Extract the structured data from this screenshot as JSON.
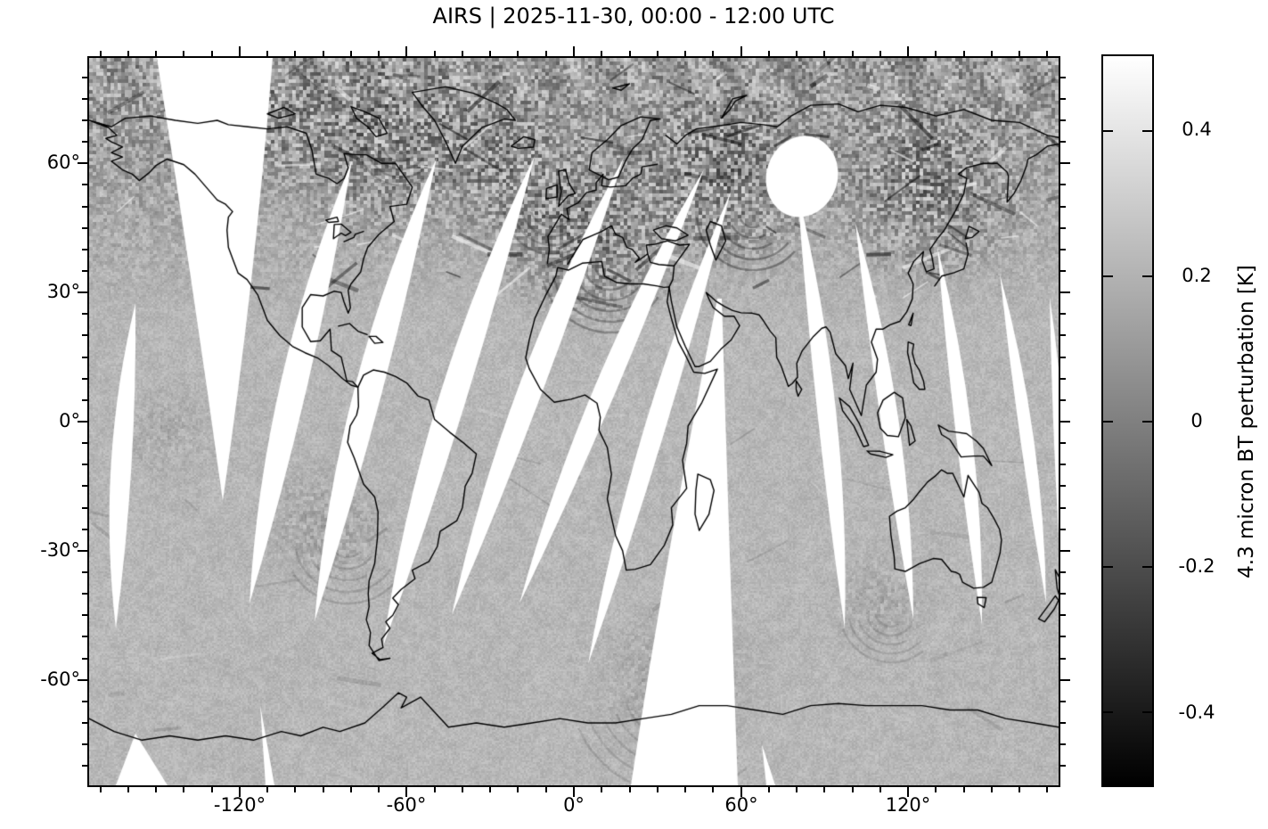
{
  "chart_data": {
    "type": "heatmap",
    "title": "AIRS | 2025-11-30, 00:00 - 12:00 UTC",
    "projection": "equirectangular world map",
    "x_axis": {
      "tick_labels": [
        "-120°",
        "-60°",
        "0°",
        "60°",
        "120°"
      ],
      "tick_values": [
        -120,
        -60,
        0,
        60,
        120
      ],
      "minor_tick_interval": 10,
      "range": [
        -174,
        174
      ]
    },
    "y_axis": {
      "tick_labels": [
        "60°",
        "30°",
        "0°",
        "-30°",
        "-60°"
      ],
      "tick_values": [
        60,
        30,
        0,
        -30,
        -60
      ],
      "minor_tick_interval": 5,
      "range": [
        -84.5,
        84.5
      ]
    },
    "colorbar": {
      "label": "4.3 micron BT perturbation [K]",
      "tick_labels": [
        "0.4",
        "0.2",
        "0",
        "-0.2",
        "-0.4"
      ],
      "tick_values": [
        0.4,
        0.2,
        0,
        -0.2,
        -0.4
      ],
      "range": [
        -0.5,
        0.5
      ],
      "colormap": "grayscale",
      "colormap_low": "#000000",
      "colormap_high": "#ffffff"
    },
    "map_features": {
      "coastlines": true,
      "coastline_color": "#000000",
      "mean_field_color": "#b9b9b9",
      "missing_data_color": "#ffffff",
      "missing_data_note": "white gaps between satellite orbit swaths"
    },
    "grid": false
  },
  "colors": {
    "figure_background": "#ffffff",
    "axis_color": "#000000"
  }
}
